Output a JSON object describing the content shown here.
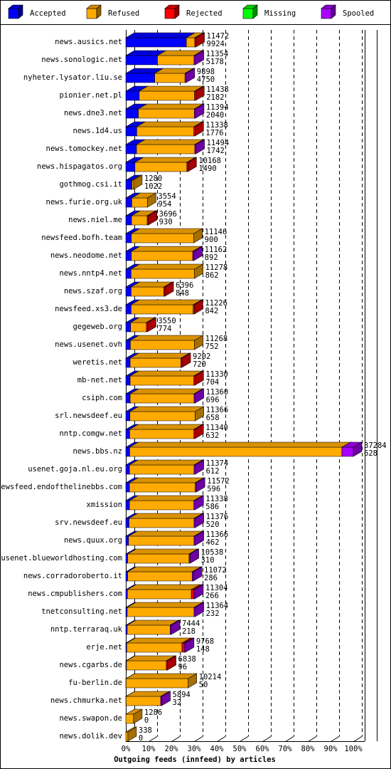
{
  "chart_data": {
    "type": "stacked-bar-3d",
    "xlabel": "Outgoing feeds (innfeed) by articles",
    "categories": [
      "news.ausics.net",
      "news.sonologic.net",
      "nyheter.lysator.liu.se",
      "pionier.net.pl",
      "news.dne3.net",
      "news.1d4.us",
      "news.tomockey.net",
      "news.hispagatos.org",
      "gothmog.csi.it",
      "news.furie.org.uk",
      "news.niel.me",
      "newsfeed.bofh.team",
      "news.neodome.net",
      "news.nntp4.net",
      "news.szaf.org",
      "newsfeed.xs3.de",
      "gegeweb.org",
      "news.usenet.ovh",
      "weretis.net",
      "mb-net.net",
      "csiph.com",
      "srl.newsdeef.eu",
      "nntp.comgw.net",
      "news.bbs.nz",
      "usenet.goja.nl.eu.org",
      "newsfeed.endofthelinebbs.com",
      "xmission",
      "srv.newsdeef.eu",
      "news.quux.org",
      "usenet.blueworldhosting.com",
      "news.corradoroberto.it",
      "news.cmpublishers.com",
      "tnetconsulting.net",
      "nntp.terraraq.uk",
      "erje.net",
      "news.cgarbs.de",
      "fu-berlin.de",
      "news.chmurka.net",
      "news.swapon.de",
      "news.dolik.dev"
    ],
    "offered": [
      11472,
      11354,
      9898,
      11438,
      11394,
      11338,
      11494,
      10168,
      1280,
      3554,
      3696,
      11146,
      11162,
      11278,
      6396,
      11226,
      3550,
      11268,
      9202,
      11330,
      11360,
      11366,
      11340,
      37284,
      11374,
      11572,
      11338,
      11376,
      11366,
      10538,
      11072,
      11304,
      11364,
      7444,
      9768,
      6838,
      10214,
      5894,
      1286,
      338
    ],
    "accepted_counts": [
      9924,
      5178,
      4750,
      2182,
      2040,
      1776,
      1742,
      1490,
      1022,
      954,
      930,
      900,
      892,
      862,
      848,
      842,
      774,
      752,
      720,
      704,
      696,
      658,
      632,
      628,
      612,
      596,
      586,
      520,
      462,
      310,
      286,
      266,
      232,
      218,
      148,
      96,
      50,
      32,
      0,
      0
    ],
    "series": [
      {
        "name": "Accepted",
        "color": "#0000ff",
        "values": [
          26.6,
          13.9,
          12.7,
          5.9,
          5.5,
          4.8,
          4.7,
          4.0,
          2.7,
          2.6,
          2.5,
          2.4,
          2.4,
          2.3,
          2.3,
          2.3,
          2.1,
          2.0,
          1.9,
          1.9,
          1.9,
          1.8,
          1.7,
          1.7,
          1.6,
          1.6,
          1.6,
          1.4,
          1.2,
          0.8,
          0.8,
          0.7,
          0.6,
          0.6,
          0.4,
          0.3,
          0.1,
          0.1,
          0,
          0
        ]
      },
      {
        "name": "Refused",
        "color": "#ffaa00",
        "values": [
          3.7,
          16.1,
          13.3,
          24.3,
          24.6,
          25.1,
          25.6,
          22.8,
          0.7,
          6.9,
          6.9,
          27.5,
          27.0,
          27.9,
          14.4,
          27.3,
          6.9,
          28.2,
          22.3,
          28.0,
          28.1,
          28.7,
          28.2,
          93.3,
          28.4,
          28.9,
          28.3,
          28.6,
          28.8,
          27.0,
          28.4,
          28.1,
          29.4,
          18.9,
          24.3,
          17.5,
          27.3,
          15.2,
          3.4,
          0.9
        ]
      },
      {
        "name": "Rejected",
        "color": "#ff0000",
        "values": [
          0.5,
          0,
          0,
          0.5,
          0,
          0.5,
          0,
          0.5,
          0,
          0,
          0.5,
          0,
          0,
          0,
          0.5,
          0.5,
          0.5,
          0,
          0.5,
          0.5,
          0,
          0,
          0.5,
          0,
          0,
          0,
          0,
          0,
          0,
          0,
          0,
          1.0,
          0,
          0,
          1.0,
          0.5,
          0,
          0,
          0,
          0
        ]
      },
      {
        "name": "Missing",
        "color": "#00ff00",
        "values": [
          0,
          0,
          0,
          0,
          0,
          0,
          0,
          0,
          0,
          0,
          0,
          0,
          0,
          0,
          0,
          0,
          0,
          0,
          0,
          0,
          0,
          0,
          0,
          0,
          0,
          0,
          0,
          0,
          0,
          0,
          0,
          0,
          0,
          0,
          0,
          0,
          0,
          0,
          0,
          0
        ]
      },
      {
        "name": "Spooled",
        "color": "#aa00ff",
        "values": [
          0,
          0.5,
          0.5,
          0,
          0.5,
          0,
          0.5,
          0,
          0,
          0,
          0,
          0,
          0.5,
          0,
          0,
          0,
          0,
          0,
          0,
          0,
          0.5,
          0,
          0,
          5.0,
          0.5,
          0.5,
          0.5,
          0.5,
          0.5,
          0.5,
          0.5,
          0.5,
          0.5,
          0.5,
          0.5,
          0,
          0,
          0.5,
          0,
          0
        ]
      }
    ],
    "xlim": [
      0,
      100
    ],
    "xticks": [
      {
        "value": 0,
        "label": "0%"
      },
      {
        "value": 10,
        "label": "10%"
      },
      {
        "value": 20,
        "label": "20%"
      },
      {
        "value": 30,
        "label": "30%"
      },
      {
        "value": 40,
        "label": "40%"
      },
      {
        "value": 50,
        "label": "50%"
      },
      {
        "value": 60,
        "label": "60%"
      },
      {
        "value": 70,
        "label": "70%"
      },
      {
        "value": 80,
        "label": "80%"
      },
      {
        "value": 90,
        "label": "90%"
      },
      {
        "value": 100,
        "label": "100%"
      }
    ],
    "grid": true
  }
}
